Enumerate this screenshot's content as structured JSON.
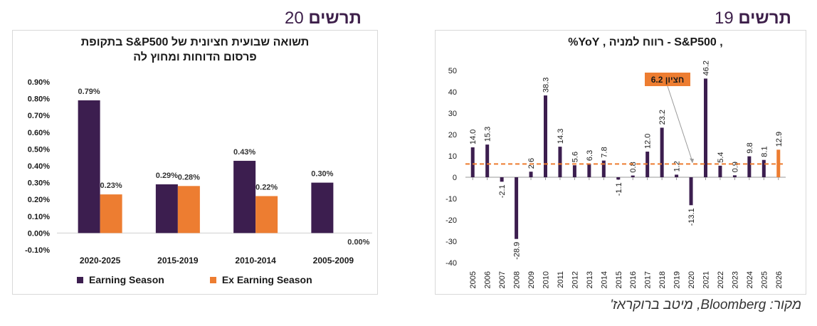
{
  "headings": {
    "left": {
      "word": "תרשים",
      "number": "20"
    },
    "right": {
      "word": "תרשים",
      "number": "19"
    }
  },
  "source": "מקור: Bloomberg, מיטב ברוקראז'",
  "colors": {
    "purple": "#3c1e4f",
    "orange": "#ed7d31",
    "text": "#1a1a1a"
  },
  "chart_data": [
    {
      "type": "bar",
      "title_lines": [
        "תשואה שבועית חציונית של S&P500 בתקופת",
        "פרסום הדוחות ומחוץ לה"
      ],
      "categories": [
        "2020-2025",
        "2015-2019",
        "2010-2014",
        "2005-2009"
      ],
      "series": [
        {
          "name": "Earning Season",
          "color": "#3c1e4f",
          "values": [
            0.79,
            0.29,
            0.43,
            0.3
          ],
          "labels": [
            "0.79%",
            "0.29%",
            "0.43%",
            "0.30%"
          ]
        },
        {
          "name": "Ex Earning Season",
          "color": "#ed7d31",
          "values": [
            0.23,
            0.28,
            0.22,
            0.0
          ],
          "labels": [
            "0.23%",
            "0.28%",
            "0.22%",
            "0.00%"
          ]
        }
      ],
      "ylim": [
        -0.1,
        0.9
      ],
      "yticks": [
        "0.90%",
        "0.80%",
        "0.70%",
        "0.60%",
        "0.50%",
        "0.40%",
        "0.30%",
        "0.20%",
        "0.10%",
        "0.00%",
        "-0.10%"
      ],
      "legend": "bottom-left"
    },
    {
      "type": "bar",
      "title": ", S&P500 - רווח למניה , YoY%",
      "categories": [
        "2005",
        "2006",
        "2007",
        "2008",
        "2009",
        "2010",
        "2011",
        "2012",
        "2013",
        "2014",
        "2015",
        "2016",
        "2017",
        "2018",
        "2019",
        "2020",
        "2021",
        "2022",
        "2023",
        "2024",
        "2025",
        "2026"
      ],
      "values": [
        14.0,
        15.3,
        -2.1,
        -28.9,
        2.6,
        38.3,
        14.3,
        5.6,
        6.3,
        7.8,
        -1.1,
        0.8,
        12.0,
        23.2,
        1.2,
        -13.1,
        46.2,
        5.4,
        0.9,
        9.8,
        8.1,
        12.9
      ],
      "labels": [
        "14.0",
        "15.3",
        "-2.1",
        "-28.9",
        "2.6",
        "38.3",
        "14.3",
        "5.6",
        "6.3",
        "7.8",
        "-1.1",
        "0.8",
        "12.0",
        "23.2",
        "1.2",
        "-13.1",
        "46.2",
        "5.4",
        "0.9",
        "9.8",
        "8.1",
        "12.9"
      ],
      "highlight_index": 21,
      "median": 6.2,
      "median_callout": "חציון 6.2",
      "ylim": [
        -40,
        50
      ],
      "yticks": [
        "50",
        "40",
        "30",
        "20",
        "10",
        "0",
        "-10",
        "-20",
        "-30",
        "-40"
      ],
      "ytick_values": [
        50,
        40,
        30,
        20,
        10,
        0,
        -10,
        -20,
        -30,
        -40
      ]
    }
  ]
}
